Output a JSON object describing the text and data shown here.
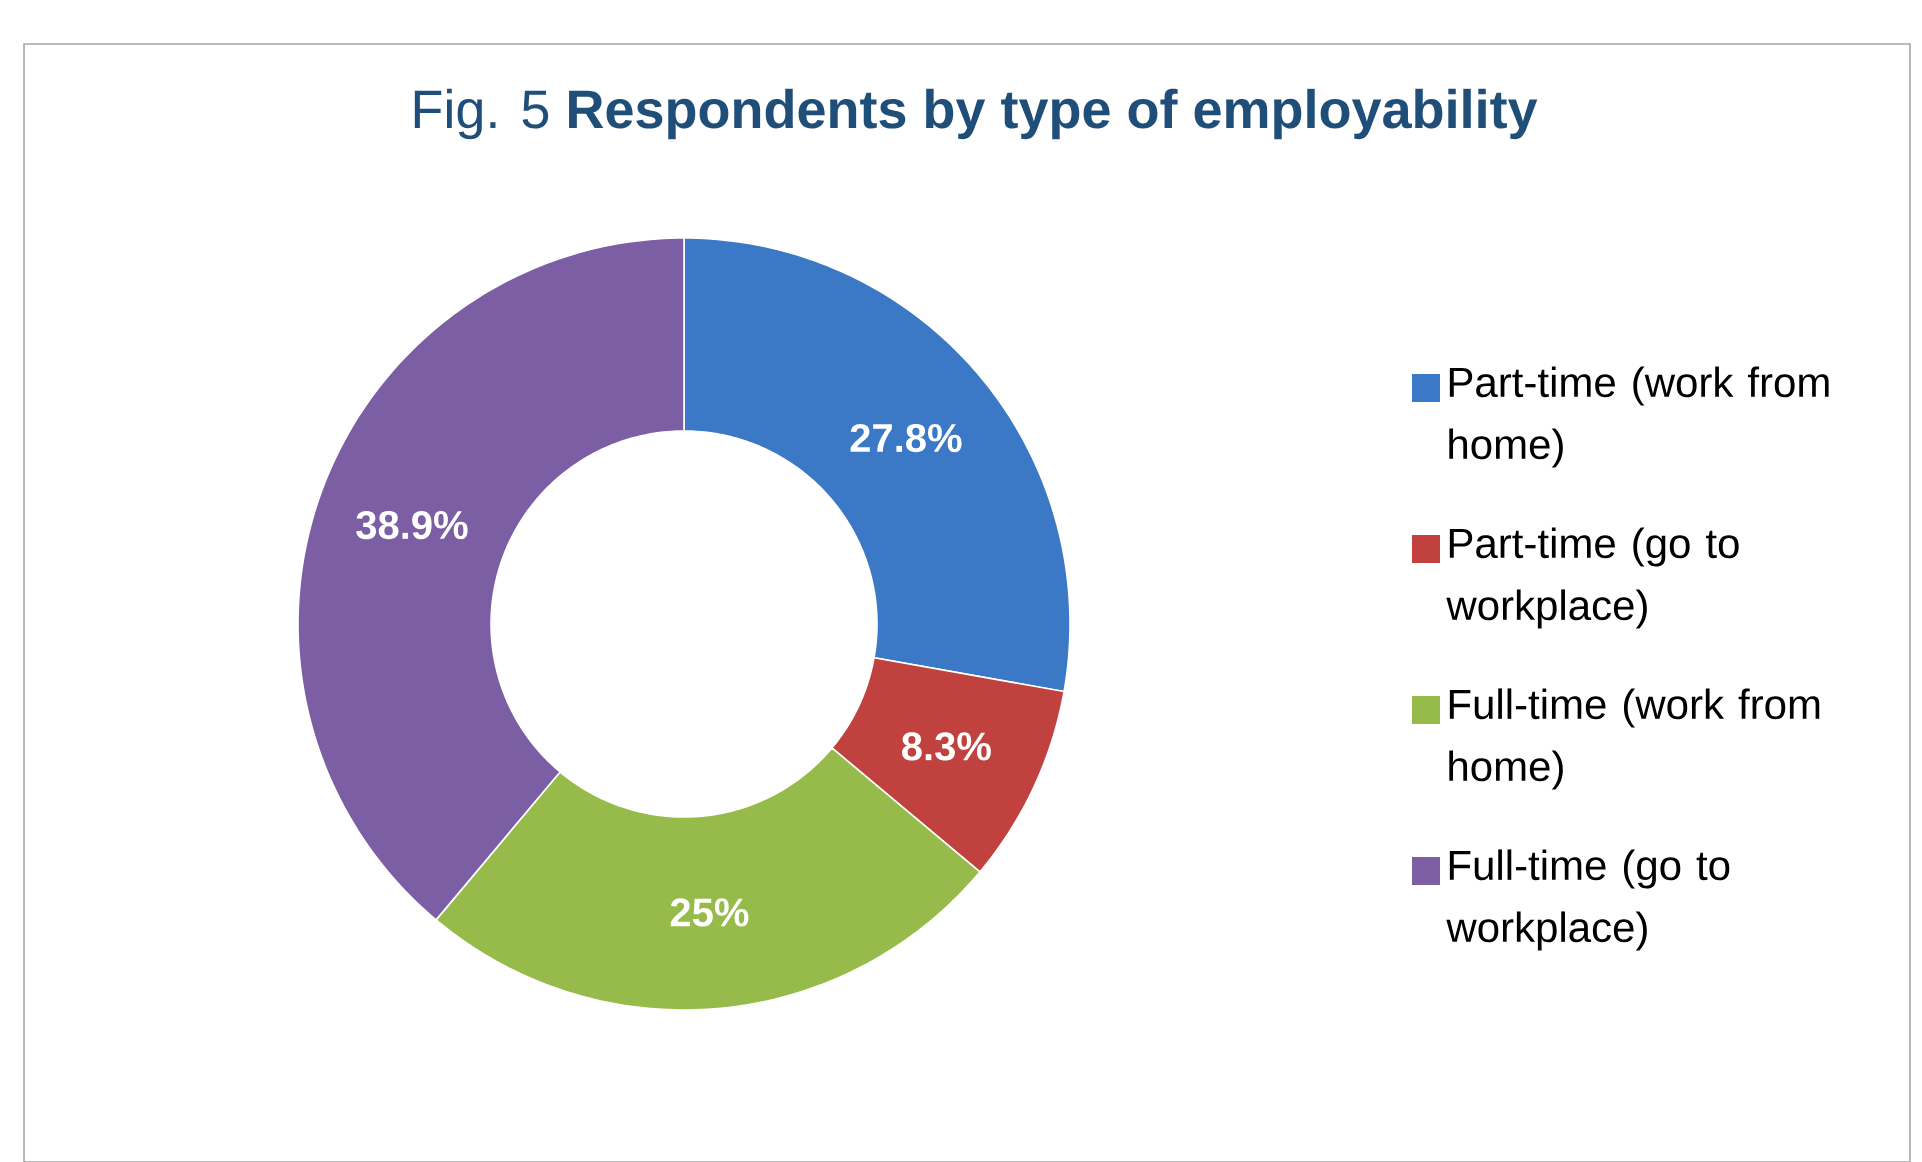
{
  "chart_data": {
    "type": "donut",
    "title": "Fig. 5 **Respondents by type of employability**",
    "categories": [
      "Part-time (work from home)",
      "Part-time (go to workplace)",
      "Full-time (work from home)",
      "Full-time (go to workplace)"
    ],
    "values": [
      27.8,
      8.3,
      25,
      38.9
    ],
    "value_labels": [
      "27.8%",
      "8.3%",
      "25%",
      "38.9%"
    ],
    "colors": [
      "#3b78c6",
      "#c0413d",
      "#97bb4a",
      "#7c5ea4"
    ],
    "legend": "right"
  }
}
